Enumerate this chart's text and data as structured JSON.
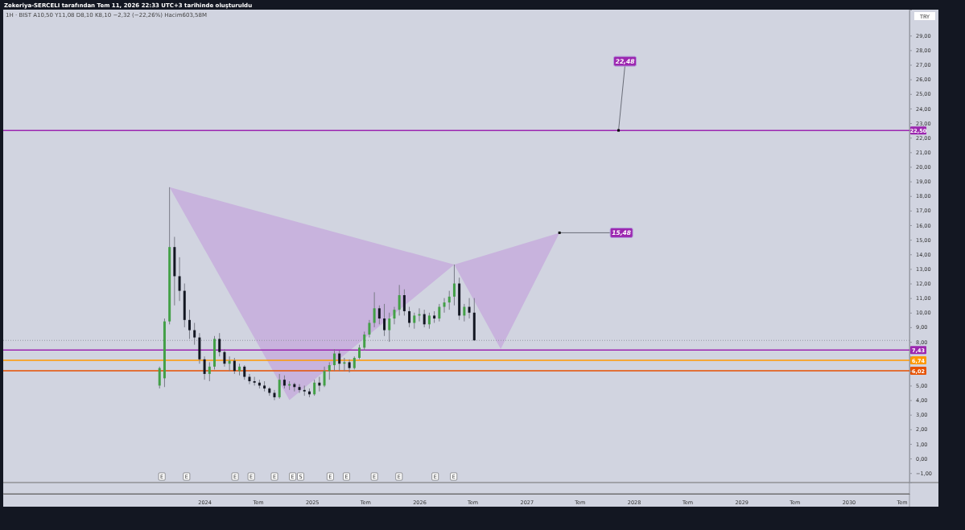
{
  "chart_data": {
    "type": "candlestick",
    "title": "Zekeriya-SERCELI tarafından Tem 11, 2026 22:33 UTC+3 tarihinde oluşturuldu",
    "subtitle": "1H · BIST  A10,50  Y11,08  D8,10  K8,10  −2,32 (−22,26%)  Hacim603,58M",
    "ylabel": "TRY",
    "x": [
      "2023-08-01",
      "2023-08-18",
      "2023-09-04",
      "2023-09-21",
      "2023-10-08",
      "2023-10-25",
      "2023-11-11",
      "2023-11-28",
      "2023-12-15",
      "2024-01-01",
      "2024-01-18",
      "2024-02-04",
      "2024-02-21",
      "2024-03-09",
      "2024-03-26",
      "2024-04-12",
      "2024-04-29",
      "2024-05-16",
      "2024-06-02",
      "2024-06-19",
      "2024-07-06",
      "2024-07-23",
      "2024-08-09",
      "2024-08-26",
      "2024-09-12",
      "2024-09-29",
      "2024-10-16",
      "2024-11-02",
      "2024-11-19",
      "2024-12-06",
      "2024-12-23",
      "2025-01-09",
      "2025-01-26",
      "2025-02-12",
      "2025-03-01",
      "2025-03-18",
      "2025-04-04",
      "2025-04-21",
      "2025-05-08",
      "2025-05-25",
      "2025-06-11",
      "2025-06-28",
      "2025-07-15",
      "2025-08-01",
      "2025-08-18",
      "2025-09-04",
      "2025-09-21",
      "2025-10-08",
      "2025-10-25",
      "2025-11-11",
      "2025-11-28",
      "2025-12-15",
      "2026-01-01",
      "2026-01-18",
      "2026-02-04",
      "2026-02-21",
      "2026-03-10",
      "2026-03-27",
      "2026-04-13",
      "2026-04-30",
      "2026-05-17",
      "2026-06-03",
      "2026-06-20",
      "2026-07-07"
    ],
    "ohlc": [
      [
        5.0,
        6.3,
        4.8,
        6.2
      ],
      [
        5.5,
        9.6,
        4.9,
        9.4
      ],
      [
        9.4,
        18.6,
        9.2,
        14.5
      ],
      [
        14.5,
        15.2,
        10.5,
        12.5
      ],
      [
        12.5,
        13.8,
        10.8,
        11.5
      ],
      [
        11.5,
        12.0,
        9.0,
        9.5
      ],
      [
        9.5,
        10.2,
        8.2,
        8.8
      ],
      [
        8.8,
        9.3,
        7.8,
        8.3
      ],
      [
        8.3,
        8.6,
        6.5,
        6.8
      ],
      [
        6.8,
        7.0,
        5.4,
        5.8
      ],
      [
        5.8,
        6.6,
        5.3,
        6.3
      ],
      [
        6.3,
        8.4,
        6.1,
        8.2
      ],
      [
        8.2,
        8.6,
        7.0,
        7.3
      ],
      [
        7.3,
        7.5,
        6.3,
        6.5
      ],
      [
        6.5,
        7.0,
        6.0,
        6.7
      ],
      [
        6.7,
        6.9,
        5.8,
        6.0
      ],
      [
        6.0,
        6.5,
        5.7,
        6.3
      ],
      [
        6.3,
        6.4,
        5.4,
        5.6
      ],
      [
        5.6,
        5.8,
        5.1,
        5.3
      ],
      [
        5.3,
        5.6,
        5.0,
        5.2
      ],
      [
        5.2,
        5.4,
        4.8,
        5.0
      ],
      [
        5.0,
        5.3,
        4.6,
        4.8
      ],
      [
        4.8,
        4.9,
        4.3,
        4.5
      ],
      [
        4.5,
        4.7,
        4.0,
        4.2
      ],
      [
        4.2,
        5.8,
        4.1,
        5.4
      ],
      [
        5.4,
        5.7,
        4.8,
        5.0
      ],
      [
        5.0,
        5.3,
        4.7,
        5.1
      ],
      [
        5.1,
        5.2,
        4.6,
        4.9
      ],
      [
        4.9,
        5.1,
        4.5,
        4.7
      ],
      [
        4.7,
        5.0,
        4.3,
        4.6
      ],
      [
        4.6,
        4.8,
        4.2,
        4.4
      ],
      [
        4.4,
        5.4,
        4.3,
        5.2
      ],
      [
        5.2,
        5.6,
        4.6,
        5.0
      ],
      [
        5.0,
        6.3,
        4.9,
        6.0
      ],
      [
        6.0,
        6.6,
        5.4,
        6.4
      ],
      [
        6.4,
        7.5,
        6.0,
        7.2
      ],
      [
        7.2,
        7.4,
        6.0,
        6.5
      ],
      [
        6.5,
        6.9,
        6.0,
        6.6
      ],
      [
        6.6,
        6.8,
        5.9,
        6.2
      ],
      [
        6.2,
        7.0,
        6.1,
        6.9
      ],
      [
        6.9,
        7.8,
        6.8,
        7.6
      ],
      [
        7.6,
        8.7,
        7.4,
        8.5
      ],
      [
        8.5,
        9.5,
        8.3,
        9.3
      ],
      [
        9.3,
        11.4,
        9.0,
        10.3
      ],
      [
        10.3,
        10.5,
        9.2,
        9.6
      ],
      [
        9.6,
        10.6,
        8.4,
        8.8
      ],
      [
        8.8,
        10.0,
        8.0,
        9.6
      ],
      [
        9.6,
        10.4,
        9.2,
        10.2
      ],
      [
        10.2,
        11.9,
        9.8,
        11.2
      ],
      [
        11.2,
        11.6,
        9.8,
        10.1
      ],
      [
        10.1,
        10.4,
        9.0,
        9.3
      ],
      [
        9.3,
        10.0,
        8.9,
        9.8
      ],
      [
        9.8,
        10.3,
        9.4,
        9.9
      ],
      [
        9.9,
        10.2,
        9.0,
        9.2
      ],
      [
        9.2,
        10.0,
        8.9,
        9.8
      ],
      [
        9.8,
        10.1,
        9.3,
        9.6
      ],
      [
        9.6,
        10.6,
        9.4,
        10.4
      ],
      [
        10.4,
        11.0,
        10.0,
        10.7
      ],
      [
        10.7,
        11.5,
        10.2,
        11.1
      ],
      [
        11.1,
        13.3,
        10.5,
        12.0
      ],
      [
        12.0,
        12.4,
        9.5,
        9.8
      ],
      [
        9.8,
        10.6,
        9.4,
        10.4
      ],
      [
        10.4,
        11.0,
        9.6,
        10.0
      ],
      [
        10.0,
        11.0,
        8.1,
        8.1
      ]
    ],
    "series": [
      {
        "type": "area",
        "color": "#c8b3dd",
        "x": [
          "2023-09-04",
          "2024-10-16",
          "2026-04-30",
          "2026-10-05",
          "2027-04-23"
        ],
        "values": [
          18.6,
          4.0,
          13.3,
          7.5,
          15.48
        ]
      }
    ],
    "xlim": [
      "2022-02-15",
      "2030-07-27"
    ],
    "xticks": [
      {
        "value": "2024-01-01",
        "label": "2024"
      },
      {
        "value": "2024-07-01",
        "label": "Tem"
      },
      {
        "value": "2025-01-01",
        "label": "2025"
      },
      {
        "value": "2025-07-01",
        "label": "Tem"
      },
      {
        "value": "2026-01-01",
        "label": "2026"
      },
      {
        "value": "2026-07-01",
        "label": "Tem"
      },
      {
        "value": "2027-01-01",
        "label": "2027"
      },
      {
        "value": "2027-07-01",
        "label": "Tem"
      },
      {
        "value": "2028-01-01",
        "label": "2028"
      },
      {
        "value": "2028-07-01",
        "label": "Tem"
      },
      {
        "value": "2029-01-01",
        "label": "2029"
      },
      {
        "value": "2029-07-01",
        "label": "Tem"
      },
      {
        "value": "2030-01-01",
        "label": "2030"
      },
      {
        "value": "2030-07-01",
        "label": "Tem"
      }
    ],
    "ylim": [
      -1.65,
      30.78
    ],
    "yticks": [
      {
        "value": -1,
        "label": "−1,00"
      },
      {
        "value": 0,
        "label": "0,00"
      },
      {
        "value": 1,
        "label": "1,00"
      },
      {
        "value": 2,
        "label": "2,00"
      },
      {
        "value": 3,
        "label": "3,00"
      },
      {
        "value": 4,
        "label": "4,00"
      },
      {
        "value": 5,
        "label": "5,00"
      },
      {
        "value": 6,
        "label": null
      },
      {
        "value": 7,
        "label": null
      },
      {
        "value": 8,
        "label": "8,00"
      },
      {
        "value": 9,
        "label": "9,00"
      },
      {
        "value": 10,
        "label": "10,00"
      },
      {
        "value": 11,
        "label": "11,00"
      },
      {
        "value": 12,
        "label": "12,00"
      },
      {
        "value": 13,
        "label": "13,00"
      },
      {
        "value": 14,
        "label": "14,00"
      },
      {
        "value": 15,
        "label": "15,00"
      },
      {
        "value": 16,
        "label": "16,00"
      },
      {
        "value": 17,
        "label": "17,00"
      },
      {
        "value": 18,
        "label": "18,00"
      },
      {
        "value": 19,
        "label": "19,00"
      },
      {
        "value": 20,
        "label": "20,00"
      },
      {
        "value": 21,
        "label": "21,00"
      },
      {
        "value": 22,
        "label": "22,00"
      },
      {
        "value": 23,
        "label": "23,00"
      },
      {
        "value": 24,
        "label": "24,00"
      },
      {
        "value": 25,
        "label": "25,00"
      },
      {
        "value": 26,
        "label": "26,00"
      },
      {
        "value": 27,
        "label": "27,00"
      },
      {
        "value": 28,
        "label": "28,00"
      },
      {
        "value": 29,
        "label": "29,00"
      }
    ],
    "ref_lines": [
      {
        "axis": "y",
        "value": 22.5,
        "label": "22,50",
        "color": "#9c27b0"
      },
      {
        "axis": "y",
        "value": 8.1,
        "color": "#9598a1",
        "line_style": "dotted"
      },
      {
        "axis": "y",
        "value": 7.43,
        "label": "7,43",
        "color": "#9c27b0"
      },
      {
        "axis": "y",
        "value": 6.74,
        "label": "6,74",
        "color": "#ff9800"
      },
      {
        "axis": "y",
        "value": 6.02,
        "label": "6,02",
        "color": "#e65100"
      }
    ],
    "annotations": [
      {
        "text": "15,48",
        "x": "2027-04-23",
        "y": 15.48
      },
      {
        "text": "22,48",
        "x": "2027-11-10",
        "y": 22.5
      },
      {
        "text": "E",
        "x": "2023-08-09"
      },
      {
        "text": "E",
        "x": "2023-11-01"
      },
      {
        "text": "E",
        "x": "2024-04-14"
      },
      {
        "text": "E",
        "x": "2024-06-08"
      },
      {
        "text": "E",
        "x": "2024-08-26"
      },
      {
        "text": "E",
        "x": "2024-10-27"
      },
      {
        "text": "S",
        "x": "2024-11-23"
      },
      {
        "text": "E",
        "x": "2025-03-04"
      },
      {
        "text": "E",
        "x": "2025-04-28"
      },
      {
        "text": "E",
        "x": "2025-08-01"
      },
      {
        "text": "E",
        "x": "2025-10-24"
      },
      {
        "text": "E",
        "x": "2026-02-24"
      },
      {
        "text": "E",
        "x": "2026-04-28"
      }
    ]
  }
}
